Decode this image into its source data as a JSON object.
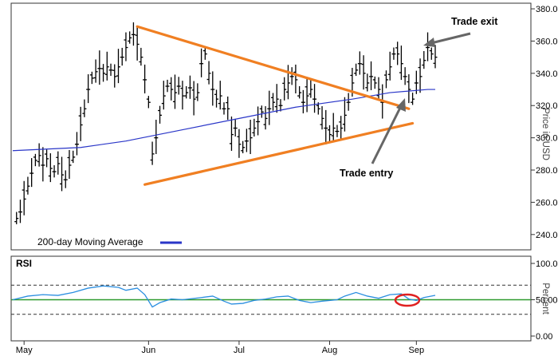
{
  "chart_data": [
    {
      "type": "ohlc",
      "title": "",
      "ylabel": "Price in USD",
      "ylim": [
        230,
        383
      ],
      "yticks": [
        "240.00",
        "260.00",
        "280.00",
        "300.00",
        "320.00",
        "340.00",
        "360.00",
        "380.00"
      ],
      "x_months": [
        "May",
        "Jun",
        "Jul",
        "Aug",
        "Sep"
      ],
      "grid": false,
      "price_bars": [
        [
          1,
          250
        ],
        [
          2,
          254
        ],
        [
          3,
          262
        ],
        [
          4,
          270
        ],
        [
          5,
          278
        ],
        [
          6,
          286
        ],
        [
          7,
          289
        ],
        [
          8,
          283
        ],
        [
          9,
          287
        ],
        [
          10,
          281
        ],
        [
          11,
          279
        ],
        [
          12,
          284
        ],
        [
          13,
          277
        ],
        [
          14,
          274
        ],
        [
          15,
          283
        ],
        [
          16,
          288
        ],
        [
          17,
          296
        ],
        [
          18,
          308
        ],
        [
          19,
          318
        ],
        [
          20,
          330
        ],
        [
          21,
          337
        ],
        [
          22,
          341
        ],
        [
          23,
          343
        ],
        [
          24,
          340
        ],
        [
          25,
          344
        ],
        [
          26,
          342
        ],
        [
          27,
          338
        ],
        [
          28,
          344
        ],
        [
          29,
          350
        ],
        [
          30,
          356
        ],
        [
          31,
          362
        ],
        [
          32,
          364
        ],
        [
          33,
          358
        ],
        [
          34,
          350
        ],
        [
          35,
          336
        ],
        [
          36,
          322
        ],
        [
          37,
          290
        ],
        [
          38,
          300
        ],
        [
          39,
          314
        ],
        [
          40,
          326
        ],
        [
          41,
          332
        ],
        [
          42,
          330
        ],
        [
          43,
          328
        ],
        [
          44,
          332
        ],
        [
          45,
          326
        ],
        [
          46,
          328
        ],
        [
          47,
          331
        ],
        [
          48,
          324
        ],
        [
          49,
          328
        ],
        [
          50,
          346
        ],
        [
          51,
          352
        ],
        [
          52,
          340
        ],
        [
          53,
          330
        ],
        [
          54,
          324
        ],
        [
          55,
          326
        ],
        [
          56,
          318
        ],
        [
          57,
          318
        ],
        [
          58,
          302
        ],
        [
          59,
          306
        ],
        [
          60,
          296
        ],
        [
          61,
          294
        ],
        [
          62,
          298
        ],
        [
          63,
          300
        ],
        [
          64,
          306
        ],
        [
          65,
          310
        ],
        [
          66,
          316
        ],
        [
          67,
          312
        ],
        [
          68,
          318
        ],
        [
          69,
          322
        ],
        [
          70,
          324
        ],
        [
          71,
          320
        ],
        [
          72,
          330
        ],
        [
          73,
          334
        ],
        [
          74,
          338
        ],
        [
          75,
          336
        ],
        [
          76,
          328
        ],
        [
          77,
          322
        ],
        [
          78,
          326
        ],
        [
          79,
          330
        ],
        [
          80,
          324
        ],
        [
          81,
          318
        ],
        [
          82,
          312
        ],
        [
          83,
          306
        ],
        [
          84,
          302
        ],
        [
          85,
          306
        ],
        [
          86,
          304
        ],
        [
          87,
          306
        ],
        [
          88,
          314
        ],
        [
          89,
          322
        ],
        [
          90,
          334
        ],
        [
          91,
          342
        ],
        [
          92,
          346
        ],
        [
          93,
          340
        ],
        [
          94,
          334
        ],
        [
          95,
          338
        ],
        [
          96,
          334
        ],
        [
          97,
          330
        ],
        [
          98,
          322
        ],
        [
          99,
          336
        ],
        [
          100,
          344
        ],
        [
          101,
          352
        ],
        [
          102,
          352
        ],
        [
          103,
          346
        ],
        [
          104,
          338
        ],
        [
          105,
          330
        ],
        [
          106,
          324
        ],
        [
          107,
          334
        ],
        [
          108,
          338
        ],
        [
          109,
          348
        ],
        [
          110,
          356
        ],
        [
          111,
          352
        ],
        [
          112,
          350
        ]
      ],
      "moving_average": {
        "name": "200-day Moving Average",
        "color": "#2a36c8",
        "points": [
          [
            0,
            292
          ],
          [
            18,
            294
          ],
          [
            30,
            298
          ],
          [
            45,
            305
          ],
          [
            60,
            312
          ],
          [
            75,
            319
          ],
          [
            90,
            324
          ],
          [
            100,
            328
          ],
          [
            110,
            330
          ],
          [
            112,
            330
          ]
        ]
      },
      "trendlines": {
        "color": "#f07f22",
        "upper": [
          [
            33,
            369
          ],
          [
            105,
            318
          ]
        ],
        "lower": [
          [
            35,
            271
          ],
          [
            106,
            309
          ]
        ]
      },
      "annotations": [
        {
          "text": "Trade exit",
          "at": [
            110,
            359
          ]
        },
        {
          "text": "Trade entry",
          "at": [
            106,
            326
          ]
        }
      ]
    },
    {
      "type": "line",
      "title": "RSI",
      "ylabel": "Percent",
      "ylim": [
        0,
        100
      ],
      "yticks": [
        "0.00",
        "50.00",
        "100.00"
      ],
      "levels": {
        "overbought": 70,
        "midline": 50,
        "oversold": 30
      },
      "line_color": "#2a8ee0",
      "midline_color": "#2e9a2e",
      "highlight_color": "#e02020",
      "rsi": [
        [
          0,
          50
        ],
        [
          4,
          55
        ],
        [
          8,
          57
        ],
        [
          12,
          56
        ],
        [
          16,
          60
        ],
        [
          20,
          66
        ],
        [
          24,
          69
        ],
        [
          28,
          67
        ],
        [
          30,
          63
        ],
        [
          33,
          66
        ],
        [
          35,
          57
        ],
        [
          37,
          40
        ],
        [
          39,
          46
        ],
        [
          42,
          51
        ],
        [
          45,
          50
        ],
        [
          50,
          53
        ],
        [
          53,
          55
        ],
        [
          56,
          48
        ],
        [
          58,
          44
        ],
        [
          61,
          45
        ],
        [
          64,
          49
        ],
        [
          67,
          51
        ],
        [
          70,
          54
        ],
        [
          73,
          55
        ],
        [
          76,
          49
        ],
        [
          79,
          46
        ],
        [
          82,
          48
        ],
        [
          86,
          50
        ],
        [
          88,
          55
        ],
        [
          91,
          60
        ],
        [
          94,
          55
        ],
        [
          97,
          52
        ],
        [
          100,
          57
        ],
        [
          103,
          58
        ],
        [
          105,
          51
        ],
        [
          107,
          49
        ],
        [
          109,
          53
        ],
        [
          112,
          56
        ]
      ]
    }
  ],
  "legend": {
    "ma_label": "200-day Moving Average"
  },
  "rsi_panel_label": "RSI"
}
